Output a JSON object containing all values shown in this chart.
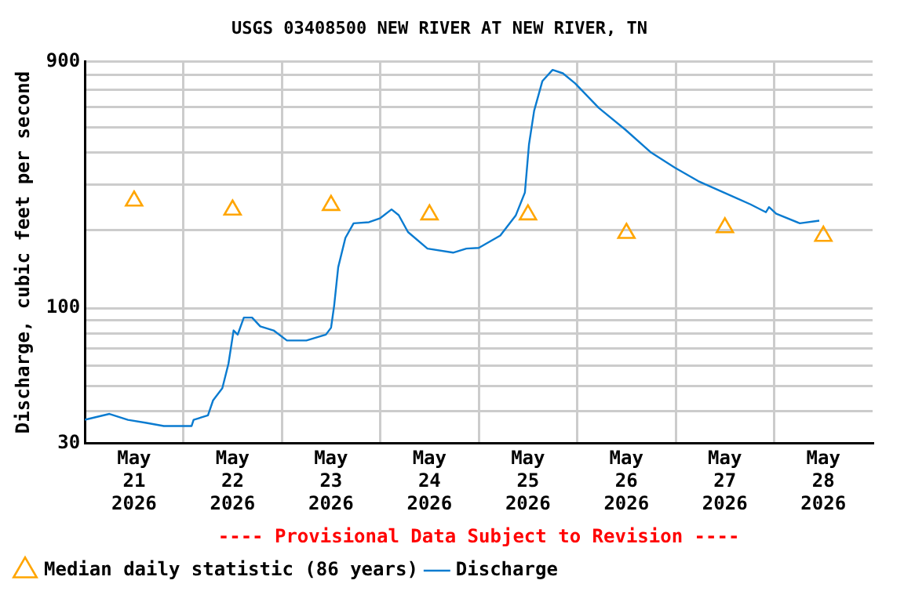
{
  "chart_data": {
    "type": "line",
    "title": "USGS 03408500 NEW RIVER AT NEW RIVER, TN",
    "ylabel": "Discharge, cubic feet per second",
    "annotations": [
      "---- Provisional Data Subject to Revision ----"
    ],
    "log": true,
    "grid": true,
    "legend": "bottom",
    "xlim": [
      "2026-05-21T00:00",
      "2026-05-29T00:00"
    ],
    "xticks": [
      {
        "value": "2026-05-21T12:00",
        "label": "May\n21\n2026"
      },
      {
        "value": "2026-05-22T00:00",
        "label": null
      },
      {
        "value": "2026-05-22T12:00",
        "label": "May\n22\n2026"
      },
      {
        "value": "2026-05-23T00:00",
        "label": null
      },
      {
        "value": "2026-05-23T12:00",
        "label": "May\n23\n2026"
      },
      {
        "value": "2026-05-24T00:00",
        "label": null
      },
      {
        "value": "2026-05-24T12:00",
        "label": "May\n24\n2026"
      },
      {
        "value": "2026-05-25T00:00",
        "label": null
      },
      {
        "value": "2026-05-25T12:00",
        "label": "May\n25\n2026"
      },
      {
        "value": "2026-05-26T00:00",
        "label": null
      },
      {
        "value": "2026-05-26T12:00",
        "label": "May\n26\n2026"
      },
      {
        "value": "2026-05-27T00:00",
        "label": null
      },
      {
        "value": "2026-05-27T12:00",
        "label": "May\n27\n2026"
      },
      {
        "value": "2026-05-28T00:00",
        "label": null
      },
      {
        "value": "2026-05-28T12:00",
        "label": "May\n28\n2026"
      }
    ],
    "ylim": [
      30,
      900
    ],
    "yticks": [
      30,
      {
        "value": 40,
        "label": null
      },
      {
        "value": 50,
        "label": null
      },
      {
        "value": 60,
        "label": null
      },
      {
        "value": 70,
        "label": null
      },
      {
        "value": 80,
        "label": null
      },
      {
        "value": 90,
        "label": null
      },
      100,
      {
        "value": 200,
        "label": null
      },
      {
        "value": 300,
        "label": null
      },
      {
        "value": 400,
        "label": null
      },
      {
        "value": 500,
        "label": null
      },
      {
        "value": 600,
        "label": null
      },
      {
        "value": 700,
        "label": null
      },
      {
        "value": 800,
        "label": null
      },
      900
    ],
    "series": [
      {
        "name": "Median daily statistic (86 years)",
        "type": "scatter",
        "marker": "triangle",
        "color": "#ffa500",
        "x": [
          "2026-05-21T12:00",
          "2026-05-22T12:00",
          "2026-05-23T12:00",
          "2026-05-24T12:00",
          "2026-05-25T12:00",
          "2026-05-26T12:00",
          "2026-05-27T12:00",
          "2026-05-28T12:00"
        ],
        "values": [
          260,
          240,
          250,
          230,
          230,
          195,
          205,
          190
        ]
      },
      {
        "name": "Discharge",
        "marker": "none",
        "color": "#0a7bd0",
        "x": [
          "2026-05-21T00:00",
          "2026-05-21T06:00",
          "2026-05-21T10:30",
          "2026-05-21T15:00",
          "2026-05-21T19:15",
          "2026-05-22T02:00",
          "2026-05-22T02:30",
          "2026-05-22T06:00",
          "2026-05-22T07:15",
          "2026-05-22T09:30",
          "2026-05-22T11:00",
          "2026-05-22T12:15",
          "2026-05-22T13:15",
          "2026-05-22T14:45",
          "2026-05-22T16:45",
          "2026-05-22T18:45",
          "2026-05-22T22:00",
          "2026-05-23T01:15",
          "2026-05-23T06:00",
          "2026-05-23T10:45",
          "2026-05-23T12:00",
          "2026-05-23T12:45",
          "2026-05-23T13:45",
          "2026-05-23T15:30",
          "2026-05-23T17:30",
          "2026-05-23T21:15",
          "2026-05-24T00:00",
          "2026-05-24T02:45",
          "2026-05-24T04:30",
          "2026-05-24T06:45",
          "2026-05-24T11:30",
          "2026-05-24T17:45",
          "2026-05-24T21:00",
          "2026-05-25T00:00",
          "2026-05-25T05:15",
          "2026-05-25T09:00",
          "2026-05-25T11:15",
          "2026-05-25T12:15",
          "2026-05-25T13:30",
          "2026-05-25T15:30",
          "2026-05-25T18:00",
          "2026-05-25T20:30",
          "2026-05-25T23:30",
          "2026-05-26T05:15",
          "2026-05-26T11:45",
          "2026-05-26T18:00",
          "2026-05-26T23:45",
          "2026-05-27T05:30",
          "2026-05-27T11:45",
          "2026-05-27T18:15",
          "2026-05-27T22:00",
          "2026-05-27T22:45",
          "2026-05-28T00:30",
          "2026-05-28T06:15",
          "2026-05-28T11:00"
        ],
        "values": [
          37,
          39,
          37,
          36,
          35,
          35,
          37,
          38.5,
          44,
          49,
          61,
          82,
          79,
          92,
          92,
          85,
          82,
          75,
          75,
          79,
          84,
          102,
          144,
          187,
          213,
          215,
          223,
          241,
          229,
          197,
          170,
          164,
          170,
          171,
          191,
          228,
          280,
          430,
          580,
          755,
          835,
          810,
          740,
          595,
          490,
          400,
          350,
          310,
          280,
          252,
          235,
          246,
          232,
          213,
          218
        ]
      }
    ]
  }
}
